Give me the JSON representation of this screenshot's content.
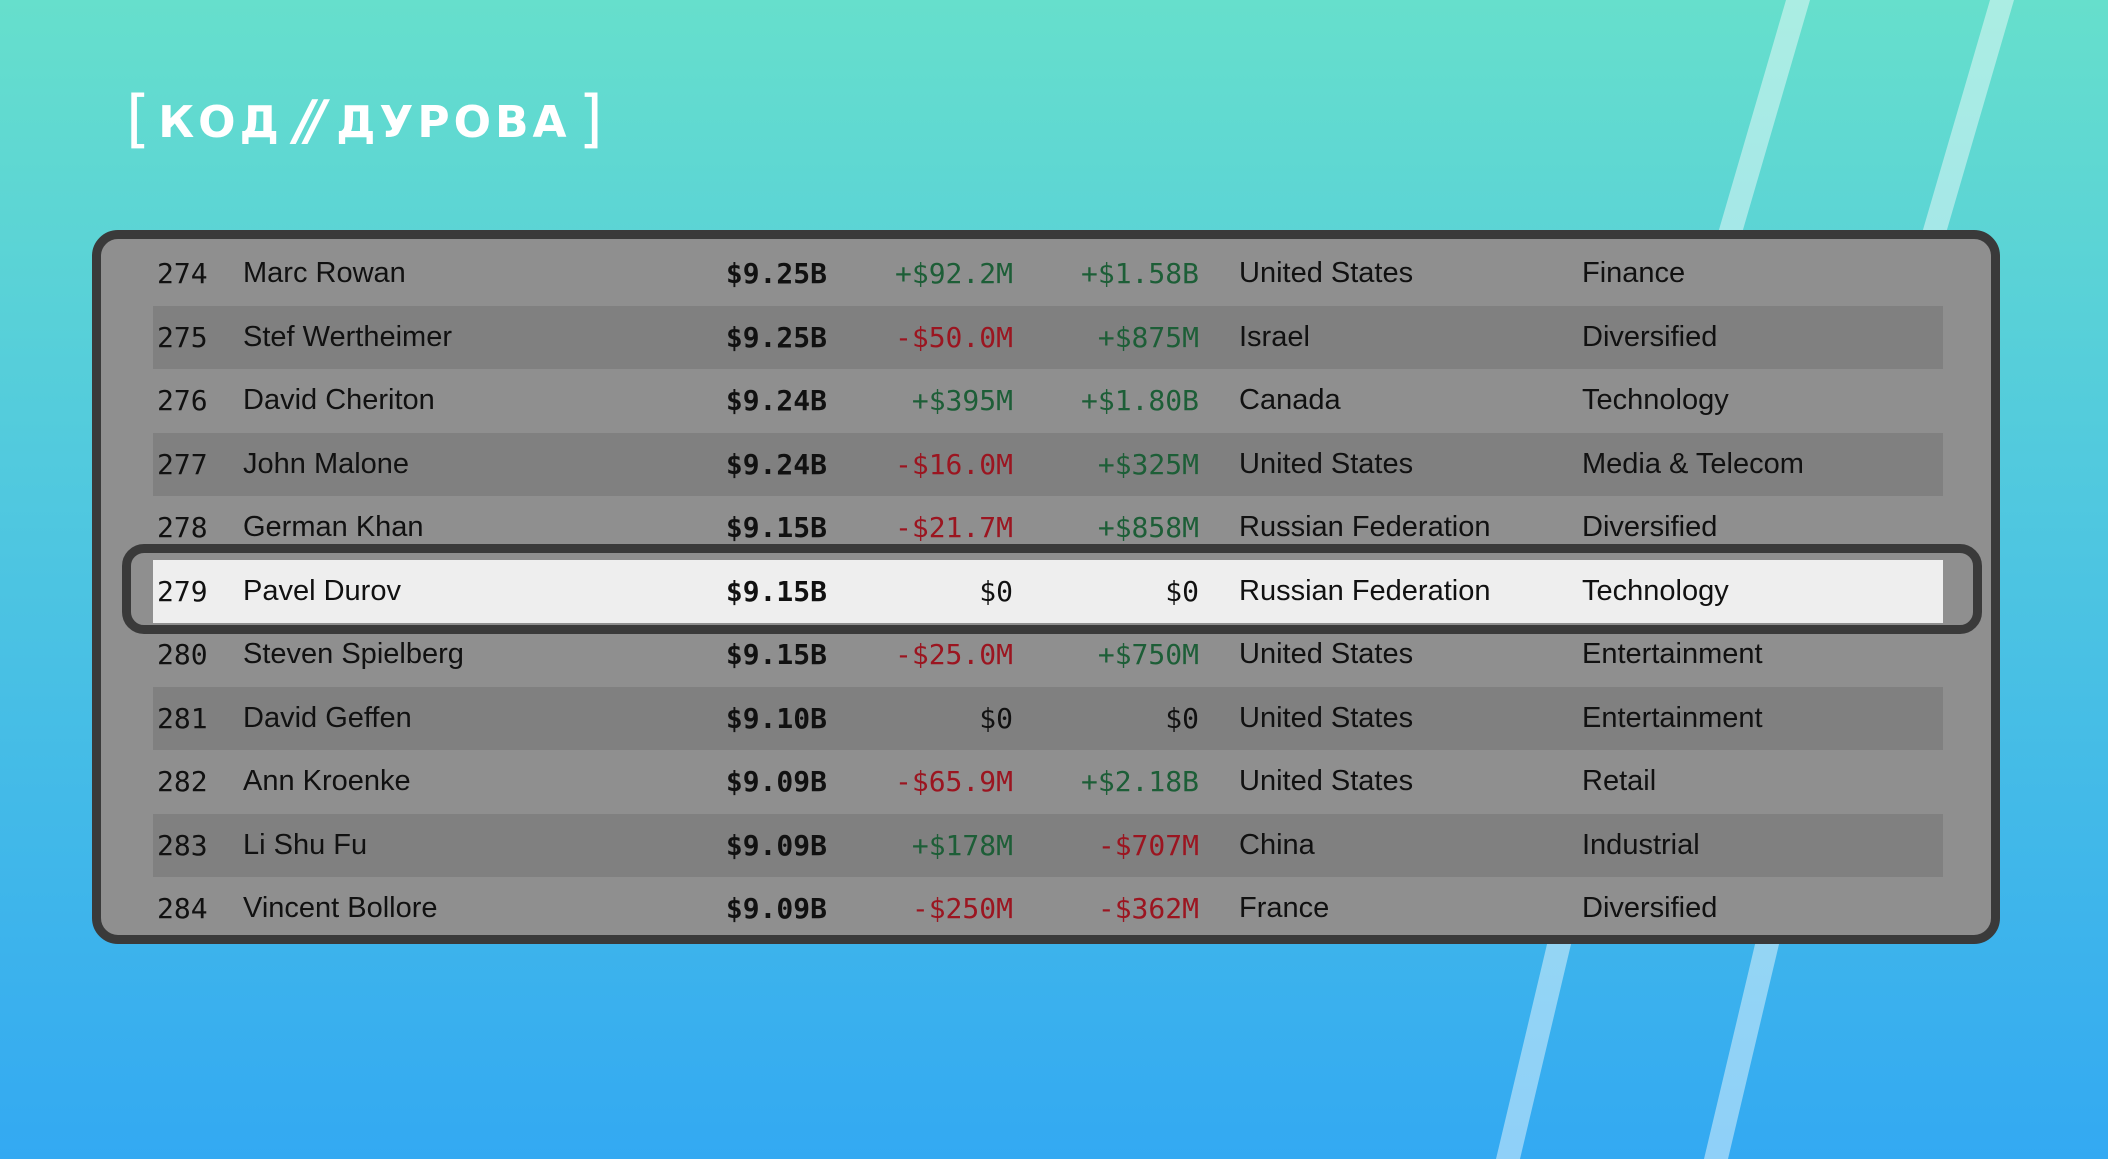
{
  "logo": {
    "left_bracket": "[",
    "word1": "КОД",
    "slash": "//",
    "word2": "ДУРОВА",
    "right_bracket": "]"
  },
  "colors": {
    "positive": "#1d5e37",
    "negative": "#9b1520",
    "highlight_row": "#eeeeee",
    "frame": "#3a3a3a"
  },
  "rows": [
    {
      "rank": "274",
      "name": "Marc Rowan",
      "worth": "$9.25B",
      "day": "+$92.2M",
      "day_sign": "pos",
      "ytd": "+$1.58B",
      "ytd_sign": "pos",
      "country": "United States",
      "industry": "Finance"
    },
    {
      "rank": "275",
      "name": "Stef Wertheimer",
      "worth": "$9.25B",
      "day": "-$50.0M",
      "day_sign": "neg",
      "ytd": "+$875M",
      "ytd_sign": "pos",
      "country": "Israel",
      "industry": "Diversified"
    },
    {
      "rank": "276",
      "name": "David Cheriton",
      "worth": "$9.24B",
      "day": "+$395M",
      "day_sign": "pos",
      "ytd": "+$1.80B",
      "ytd_sign": "pos",
      "country": "Canada",
      "industry": "Technology"
    },
    {
      "rank": "277",
      "name": "John Malone",
      "worth": "$9.24B",
      "day": "-$16.0M",
      "day_sign": "neg",
      "ytd": "+$325M",
      "ytd_sign": "pos",
      "country": "United States",
      "industry": "Media & Telecom"
    },
    {
      "rank": "278",
      "name": "German Khan",
      "worth": "$9.15B",
      "day": "-$21.7M",
      "day_sign": "neg",
      "ytd": "+$858M",
      "ytd_sign": "pos",
      "country": "Russian Federation",
      "industry": "Diversified"
    },
    {
      "rank": "279",
      "name": "Pavel Durov",
      "worth": "$9.15B",
      "day": "$0",
      "day_sign": "zero",
      "ytd": "$0",
      "ytd_sign": "zero",
      "country": "Russian Federation",
      "industry": "Technology",
      "highlighted": true
    },
    {
      "rank": "280",
      "name": "Steven Spielberg",
      "worth": "$9.15B",
      "day": "-$25.0M",
      "day_sign": "neg",
      "ytd": "+$750M",
      "ytd_sign": "pos",
      "country": "United States",
      "industry": "Entertainment"
    },
    {
      "rank": "281",
      "name": "David Geffen",
      "worth": "$9.10B",
      "day": "$0",
      "day_sign": "zero",
      "ytd": "$0",
      "ytd_sign": "zero",
      "country": "United States",
      "industry": "Entertainment"
    },
    {
      "rank": "282",
      "name": "Ann Kroenke",
      "worth": "$9.09B",
      "day": "-$65.9M",
      "day_sign": "neg",
      "ytd": "+$2.18B",
      "ytd_sign": "pos",
      "country": "United States",
      "industry": "Retail"
    },
    {
      "rank": "283",
      "name": "Li Shu Fu",
      "worth": "$9.09B",
      "day": "+$178M",
      "day_sign": "pos",
      "ytd": "-$707M",
      "ytd_sign": "neg",
      "country": "China",
      "industry": "Industrial"
    },
    {
      "rank": "284",
      "name": "Vincent Bollore",
      "worth": "$9.09B",
      "day": "-$250M",
      "day_sign": "neg",
      "ytd": "-$362M",
      "ytd_sign": "neg",
      "country": "France",
      "industry": "Diversified"
    }
  ]
}
